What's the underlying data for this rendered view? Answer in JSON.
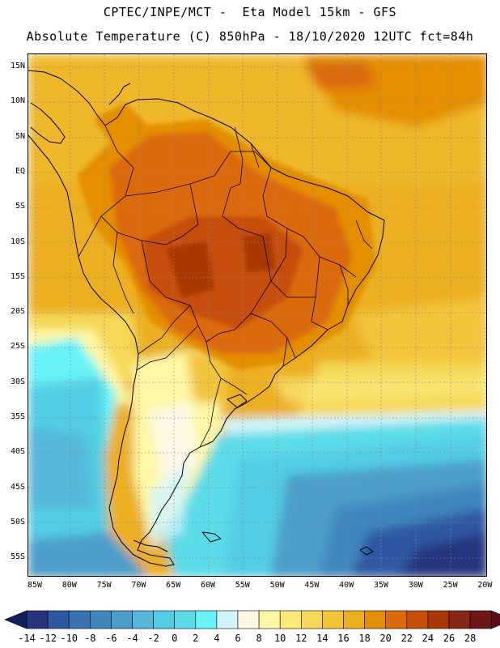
{
  "header": {
    "line1": "CPTEC/INPE/MCT -  Eta Model 15km - GFS",
    "line2": "Absolute Temperature (C) 850hPa - 18/10/2020 12UTC fct=84h"
  },
  "map": {
    "lat_labels": [
      "15N",
      "10N",
      "5N",
      "EQ",
      "5S",
      "10S",
      "15S",
      "20S",
      "25S",
      "30S",
      "35S",
      "40S",
      "45S",
      "50S",
      "55S"
    ],
    "lon_labels": [
      "85W",
      "80W",
      "75W",
      "70W",
      "65W",
      "60W",
      "55W",
      "50W",
      "45W",
      "40W",
      "35W",
      "30W",
      "25W",
      "20W"
    ],
    "colors": {
      "land_border": "#000000",
      "grid": "#888888"
    }
  },
  "colorbar": {
    "labels": [
      "-14",
      "-12",
      "-10",
      "-8",
      "-6",
      "-4",
      "-2",
      "0",
      "2",
      "4",
      "6",
      "8",
      "10",
      "12",
      "14",
      "16",
      "18",
      "20",
      "22",
      "24",
      "26",
      "28"
    ],
    "colors": [
      "#27357e",
      "#2e58a3",
      "#3a71b0",
      "#3f86bf",
      "#4b9ec9",
      "#55b8d8",
      "#53cde3",
      "#5cdbe8",
      "#67f3f8",
      "#d1f4fb",
      "#fff8e5",
      "#fef8a6",
      "#fbe97a",
      "#f6d856",
      "#f1c43a",
      "#ecaf20",
      "#e48e05",
      "#dc6b07",
      "#c74e08",
      "#a83806",
      "#882716",
      "#6e1717"
    ],
    "under_color": "#111e60",
    "over_color": "#5e0d1c"
  }
}
